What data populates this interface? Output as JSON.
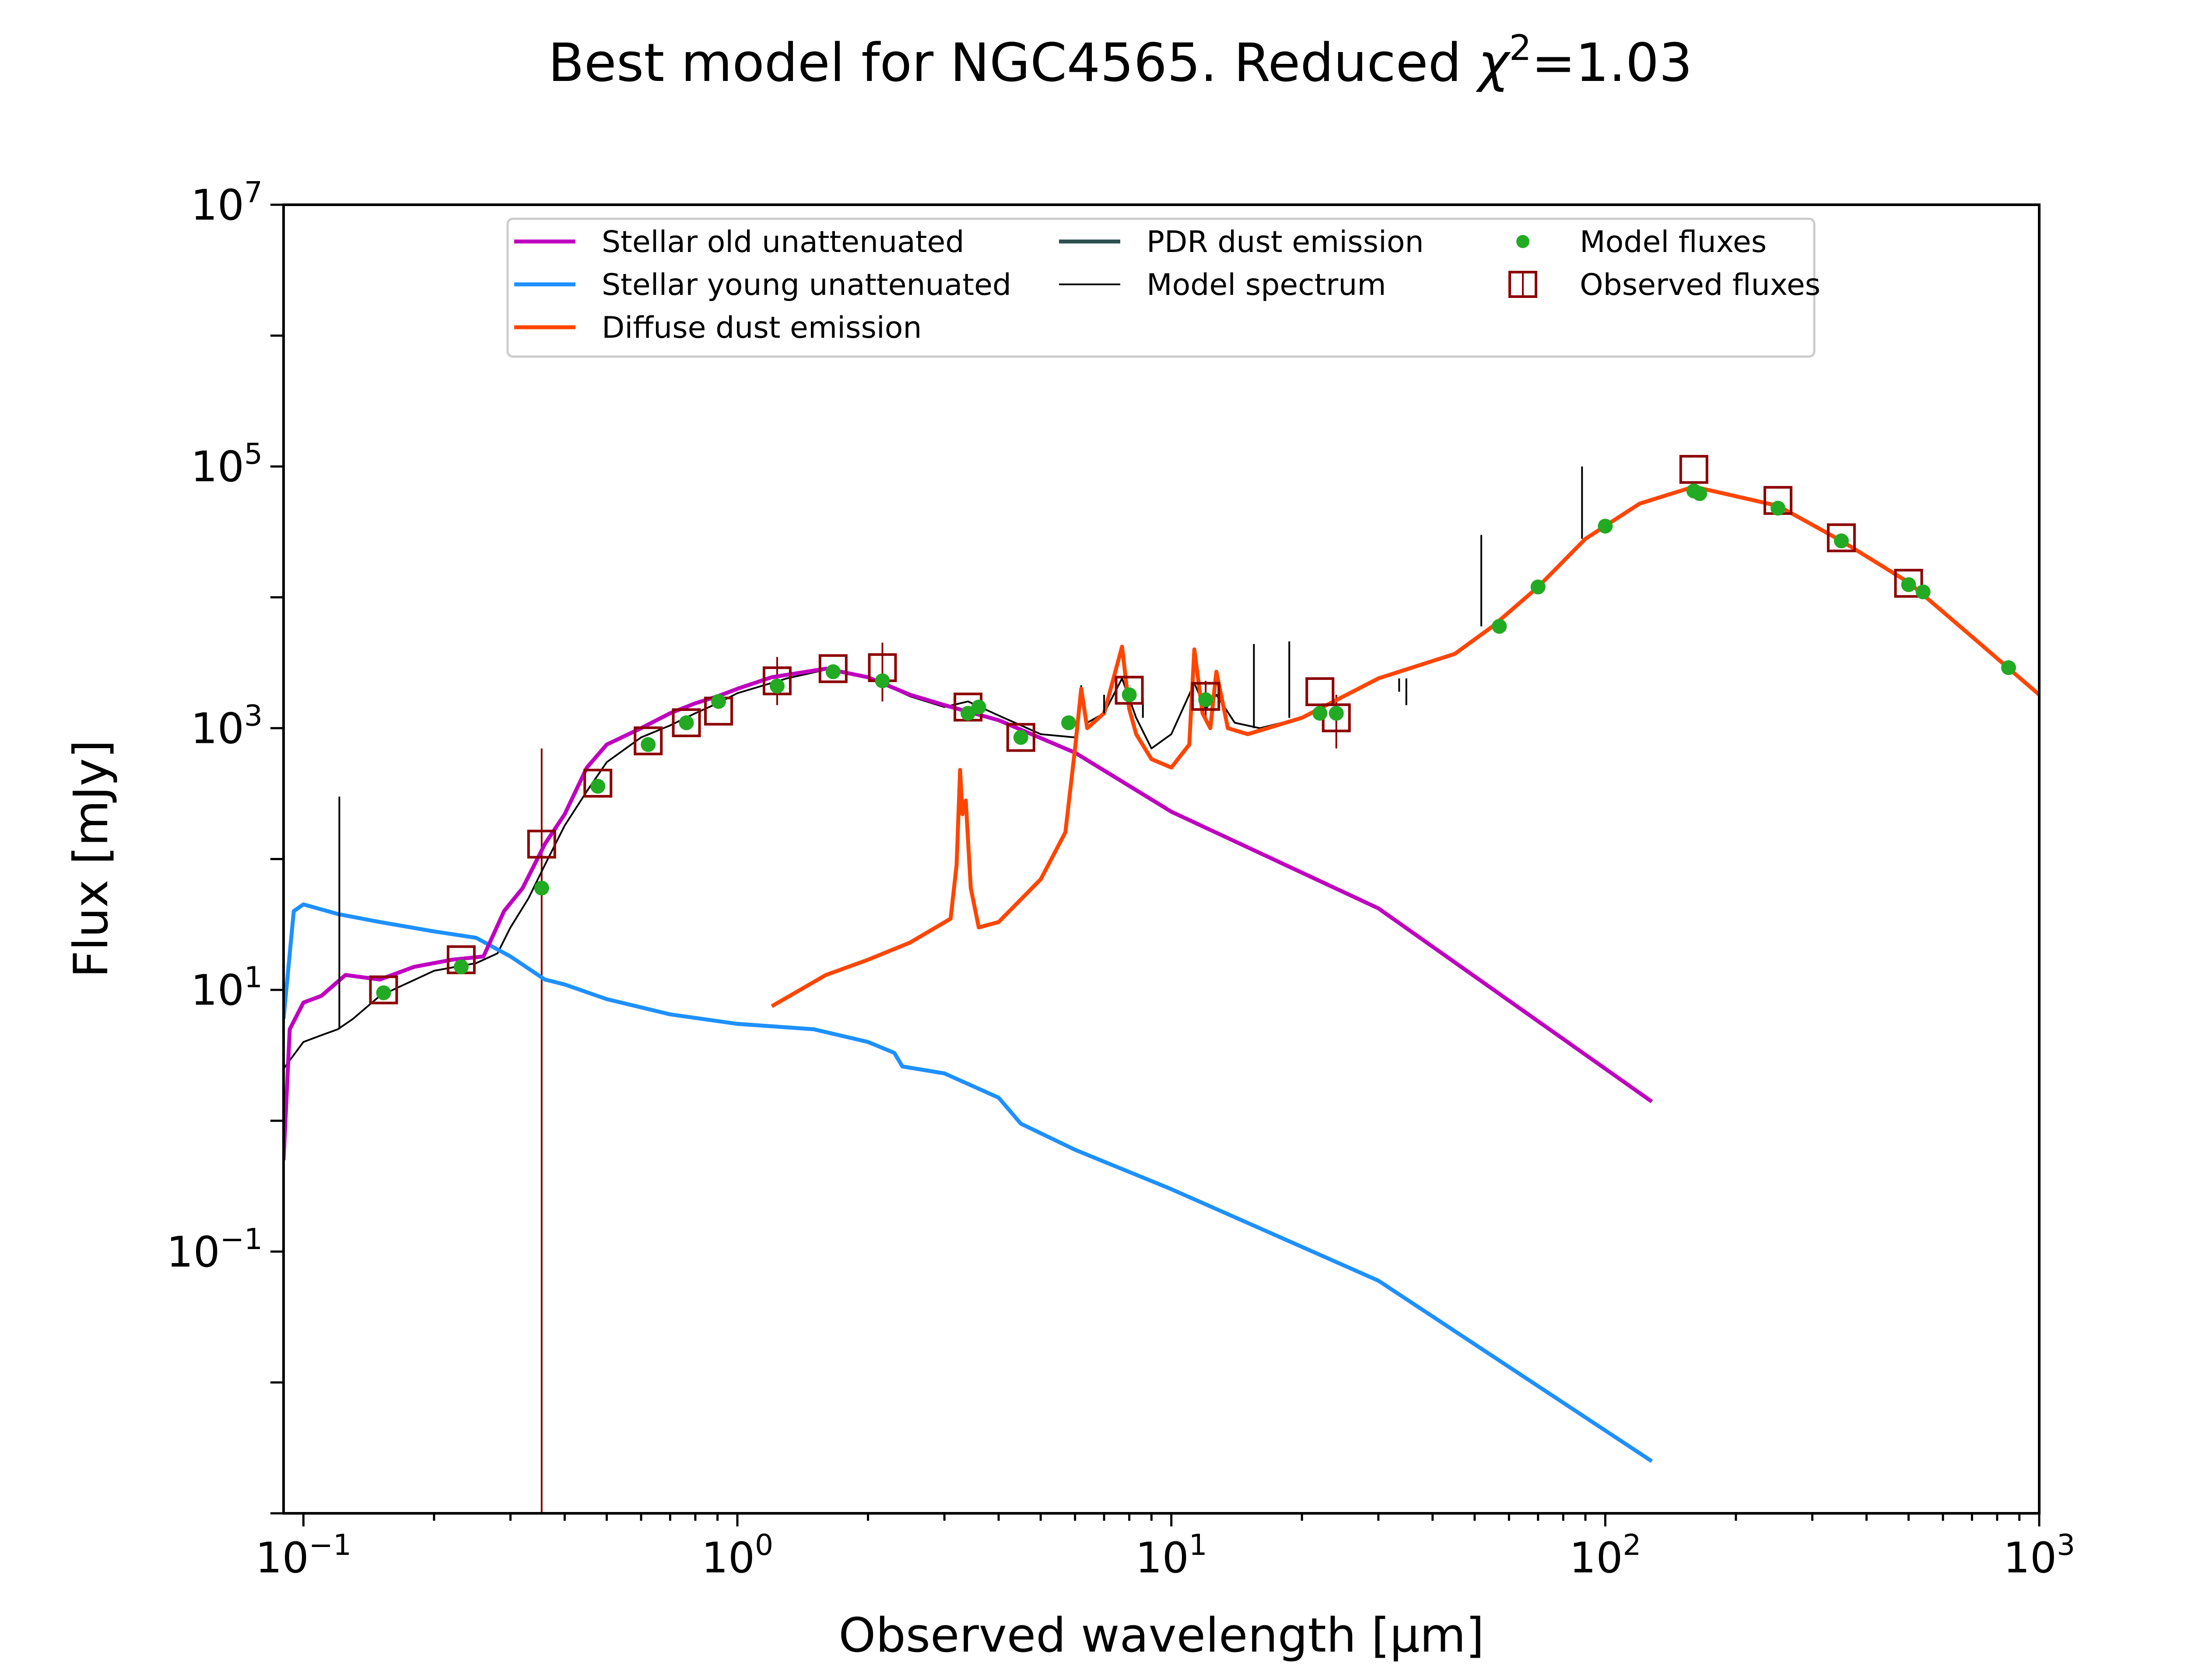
{
  "figure": {
    "title_prefix": "Best model for NGC4565. Reduced ",
    "title_chi": "χ",
    "title_chi_exp": "2",
    "title_suffix": "=1.03"
  },
  "chart_data": {
    "type": "line",
    "title": "Best model for NGC4565. Reduced χ²=1.03",
    "xlabel": "Observed wavelength [μm]",
    "ylabel": "Flux [mJy]",
    "xscale": "log",
    "yscale": "log",
    "xlim": [
      0.09,
      1000
    ],
    "ylim": [
      0.001,
      10000000
    ],
    "grid": false,
    "legend_position": "top-center",
    "x_ticks": [
      {
        "base": "10",
        "exp": "−1",
        "value": 0.1
      },
      {
        "base": "10",
        "exp": "0",
        "value": 1
      },
      {
        "base": "10",
        "exp": "1",
        "value": 10
      },
      {
        "base": "10",
        "exp": "2",
        "value": 100
      },
      {
        "base": "10",
        "exp": "3",
        "value": 1000
      }
    ],
    "y_ticks": [
      {
        "base": "10",
        "exp": "−1",
        "value": 0.1
      },
      {
        "base": "10",
        "exp": "1",
        "value": 10
      },
      {
        "base": "10",
        "exp": "3",
        "value": 1000
      },
      {
        "base": "10",
        "exp": "5",
        "value": 100000
      },
      {
        "base": "10",
        "exp": "7",
        "value": 10000000
      }
    ],
    "colors": {
      "stellar_old": "#bf00bf",
      "stellar_young": "#1e90ff",
      "diffuse_dust": "#ff4500",
      "pdr_dust": "#2f4f4f",
      "model_spectrum": "#000000",
      "model_fluxes": "#22aa22",
      "observed_fluxes": "#8b0000"
    },
    "series": [
      {
        "name": "Stellar old unattenuated",
        "key": "stellar_old",
        "points": [
          [
            0.09,
            0.5
          ],
          [
            0.093,
            5
          ],
          [
            0.1,
            8
          ],
          [
            0.11,
            9
          ],
          [
            0.125,
            13
          ],
          [
            0.15,
            12
          ],
          [
            0.18,
            15
          ],
          [
            0.22,
            17
          ],
          [
            0.26,
            18
          ],
          [
            0.29,
            40
          ],
          [
            0.32,
            60
          ],
          [
            0.36,
            130
          ],
          [
            0.4,
            220
          ],
          [
            0.45,
            500
          ],
          [
            0.5,
            750
          ],
          [
            0.6,
            1000
          ],
          [
            0.7,
            1300
          ],
          [
            0.8,
            1550
          ],
          [
            0.9,
            1750
          ],
          [
            1.0,
            2000
          ],
          [
            1.2,
            2450
          ],
          [
            1.6,
            2850
          ],
          [
            2.0,
            2450
          ],
          [
            2.5,
            1800
          ],
          [
            3.0,
            1500
          ],
          [
            4.0,
            1150
          ],
          [
            6.0,
            650
          ],
          [
            10.0,
            230
          ],
          [
            30,
            42
          ],
          [
            128,
            1.4
          ]
        ]
      },
      {
        "name": "Stellar young unattenuated",
        "key": "stellar_young",
        "points": [
          [
            0.09,
            6
          ],
          [
            0.095,
            40
          ],
          [
            0.1,
            45
          ],
          [
            0.12,
            38
          ],
          [
            0.15,
            33
          ],
          [
            0.2,
            28
          ],
          [
            0.25,
            25
          ],
          [
            0.3,
            18
          ],
          [
            0.36,
            12
          ],
          [
            0.4,
            11
          ],
          [
            0.5,
            8.5
          ],
          [
            0.7,
            6.5
          ],
          [
            1.0,
            5.5
          ],
          [
            1.5,
            5
          ],
          [
            2.0,
            4
          ],
          [
            2.3,
            3.3
          ],
          [
            2.4,
            2.6
          ],
          [
            3.0,
            2.3
          ],
          [
            4.0,
            1.5
          ],
          [
            4.5,
            0.95
          ],
          [
            6.0,
            0.6
          ],
          [
            10.0,
            0.3
          ],
          [
            30,
            0.06
          ],
          [
            128,
            0.0025
          ]
        ]
      },
      {
        "name": "Diffuse dust emission",
        "key": "diffuse_dust",
        "points": [
          [
            1.2,
            7.5
          ],
          [
            1.6,
            13
          ],
          [
            2.0,
            17
          ],
          [
            2.5,
            23
          ],
          [
            3.1,
            35
          ],
          [
            3.2,
            90
          ],
          [
            3.26,
            480
          ],
          [
            3.3,
            220
          ],
          [
            3.36,
            280
          ],
          [
            3.45,
            60
          ],
          [
            3.6,
            30
          ],
          [
            4.0,
            33
          ],
          [
            5.0,
            70
          ],
          [
            5.7,
            160
          ],
          [
            6.0,
            700
          ],
          [
            6.2,
            2000
          ],
          [
            6.4,
            1000
          ],
          [
            7.0,
            1300
          ],
          [
            7.7,
            4200
          ],
          [
            8.0,
            1400
          ],
          [
            8.3,
            900
          ],
          [
            9.0,
            580
          ],
          [
            10.0,
            500
          ],
          [
            11.0,
            750
          ],
          [
            11.3,
            4000
          ],
          [
            11.8,
            1300
          ],
          [
            12.3,
            1000
          ],
          [
            12.7,
            2700
          ],
          [
            13.5,
            1000
          ],
          [
            15,
            900
          ],
          [
            20,
            1200
          ],
          [
            30,
            2400
          ],
          [
            45,
            3700
          ],
          [
            55,
            6000
          ],
          [
            70,
            12000
          ],
          [
            90,
            28000
          ],
          [
            120,
            52000
          ],
          [
            160,
            70000
          ],
          [
            250,
            50000
          ],
          [
            350,
            27000
          ],
          [
            500,
            13000
          ],
          [
            700,
            5000
          ],
          [
            1000,
            1800
          ]
        ]
      },
      {
        "name": "PDR dust emission",
        "key": "pdr_dust",
        "points": []
      },
      {
        "name": "Model spectrum",
        "key": "model_spectrum",
        "points": [
          [
            0.09,
            2.5
          ],
          [
            0.1,
            4
          ],
          [
            0.11,
            4.5
          ],
          [
            0.12,
            5
          ],
          [
            0.13,
            6
          ],
          [
            0.15,
            9
          ],
          [
            0.2,
            14
          ],
          [
            0.25,
            16
          ],
          [
            0.28,
            19
          ],
          [
            0.3,
            30
          ],
          [
            0.33,
            50
          ],
          [
            0.36,
            90
          ],
          [
            0.4,
            180
          ],
          [
            0.45,
            330
          ],
          [
            0.5,
            550
          ],
          [
            0.6,
            850
          ],
          [
            0.7,
            1050
          ],
          [
            0.8,
            1300
          ],
          [
            0.9,
            1550
          ],
          [
            1.0,
            1850
          ],
          [
            1.3,
            2400
          ],
          [
            1.6,
            2800
          ],
          [
            2.0,
            2450
          ],
          [
            2.5,
            1750
          ],
          [
            3.0,
            1450
          ],
          [
            3.4,
            1600
          ],
          [
            4.0,
            1250
          ],
          [
            5.0,
            900
          ],
          [
            6.0,
            850
          ],
          [
            6.2,
            2100
          ],
          [
            6.4,
            1100
          ],
          [
            7.0,
            1300
          ],
          [
            7.7,
            2400
          ],
          [
            8.3,
            1200
          ],
          [
            9.0,
            700
          ],
          [
            10.0,
            900
          ],
          [
            11.3,
            2200
          ],
          [
            12.0,
            1400
          ],
          [
            12.7,
            1800
          ],
          [
            14.0,
            1100
          ],
          [
            16.0,
            1000
          ],
          [
            20.0,
            1200
          ],
          [
            30,
            2400
          ],
          [
            45,
            3700
          ],
          [
            55,
            6000
          ],
          [
            70,
            12000
          ],
          [
            90,
            28000
          ],
          [
            120,
            52000
          ],
          [
            160,
            70000
          ],
          [
            250,
            50000
          ],
          [
            350,
            27000
          ],
          [
            500,
            13000
          ],
          [
            700,
            5000
          ],
          [
            1000,
            1800
          ]
        ],
        "lines": [
          [
            0.121,
            300
          ],
          [
            7.0,
            1800
          ],
          [
            7.7,
            2300
          ],
          [
            8.6,
            1700
          ],
          [
            15.5,
            4400
          ],
          [
            18.7,
            4600
          ],
          [
            33.5,
            1900
          ],
          [
            34.8,
            1500
          ],
          [
            51.8,
            30000
          ],
          [
            57.3,
            6500
          ],
          [
            88.4,
            100000
          ]
        ]
      },
      {
        "name": "Model fluxes",
        "key": "model_fluxes",
        "marker": "circle",
        "points": [
          [
            0.153,
            9.5
          ],
          [
            0.231,
            15
          ],
          [
            0.354,
            60
          ],
          [
            0.477,
            360
          ],
          [
            0.623,
            750
          ],
          [
            0.763,
            1100
          ],
          [
            0.905,
            1600
          ],
          [
            1.235,
            2100
          ],
          [
            1.662,
            2700
          ],
          [
            2.159,
            2300
          ],
          [
            3.4,
            1300
          ],
          [
            3.6,
            1450
          ],
          [
            4.5,
            850
          ],
          [
            5.8,
            1100
          ],
          [
            8.0,
            1800
          ],
          [
            12.0,
            1650
          ],
          [
            22.0,
            1300
          ],
          [
            24.0,
            1300
          ],
          [
            57.0,
            6000
          ],
          [
            70.0,
            12000
          ],
          [
            100.0,
            35000
          ],
          [
            160.0,
            65000
          ],
          [
            165.0,
            62000
          ],
          [
            250.0,
            48000
          ],
          [
            350.0,
            27000
          ],
          [
            500.0,
            12500
          ],
          [
            540.0,
            11000
          ],
          [
            850.0,
            2900
          ]
        ]
      },
      {
        "name": "Observed fluxes",
        "key": "observed_fluxes",
        "marker": "open-square",
        "points": [
          [
            0.153,
            10
          ],
          [
            0.231,
            17
          ],
          [
            0.354,
            130
          ],
          [
            0.477,
            380
          ],
          [
            0.623,
            800
          ],
          [
            0.763,
            1100
          ],
          [
            0.905,
            1350
          ],
          [
            1.235,
            2300
          ],
          [
            1.662,
            2850
          ],
          [
            2.159,
            2900
          ],
          [
            3.4,
            1450
          ],
          [
            4.5,
            850
          ],
          [
            8.0,
            1950
          ],
          [
            12.0,
            1750
          ],
          [
            22.0,
            1900
          ],
          [
            24.0,
            1200
          ],
          [
            160.0,
            95000
          ],
          [
            250.0,
            55000
          ],
          [
            350.0,
            28500
          ],
          [
            500.0,
            12800
          ]
        ],
        "errorbars": [
          [
            0.354,
            0.001,
            700
          ],
          [
            1.235,
            1500,
            3500
          ],
          [
            2.159,
            1600,
            4500
          ],
          [
            12.0,
            1200,
            2300
          ],
          [
            24.0,
            700,
            1800
          ]
        ]
      }
    ]
  }
}
